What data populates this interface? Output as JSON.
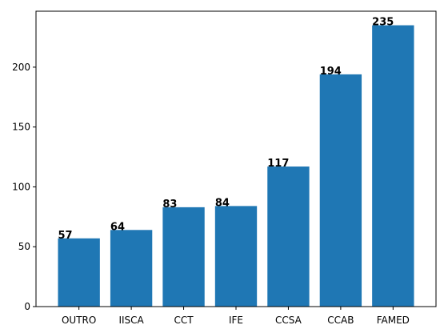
{
  "chart_data": {
    "type": "bar",
    "categories": [
      "OUTRO",
      "IISCA",
      "CCT",
      "IFE",
      "CCSA",
      "CCAB",
      "FAMED"
    ],
    "values": [
      57,
      64,
      83,
      84,
      117,
      194,
      235
    ],
    "title": "",
    "xlabel": "",
    "ylabel": "",
    "ylim": [
      0,
      246.75
    ],
    "yticks": [
      0,
      50,
      100,
      150,
      200
    ],
    "bar_color": "#1f77b4",
    "grid": false,
    "legend": "none"
  }
}
